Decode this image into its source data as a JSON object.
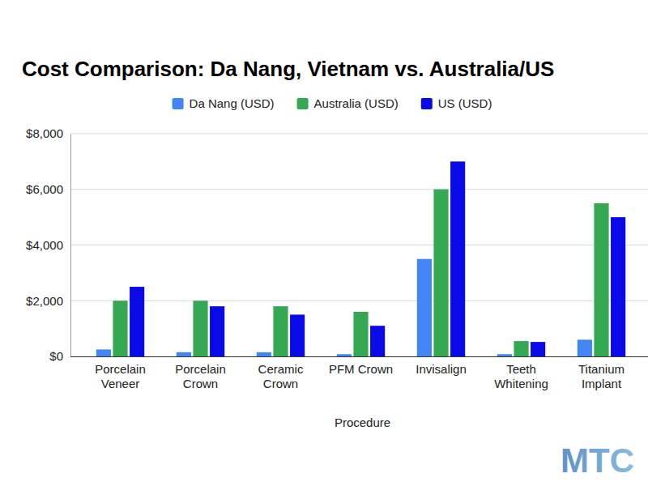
{
  "chart_data": {
    "type": "bar",
    "title": "Cost Comparison: Da Nang, Vietnam vs. Australia/US",
    "x_label": "Procedure",
    "categories": [
      "Porcelain Veneer",
      "Porcelain Crown",
      "Ceramic Crown",
      "PFM Crown",
      "Invisalign",
      "Teeth Whitening",
      "Titanium Implant"
    ],
    "series": [
      {
        "name": "Da Nang (USD)",
        "color": "#4285f4",
        "values": [
          250,
          150,
          150,
          80,
          3500,
          80,
          600
        ]
      },
      {
        "name": "Australia (USD)",
        "color": "#34a853",
        "values": [
          2000,
          2000,
          1800,
          1600,
          6000,
          550,
          5500
        ]
      },
      {
        "name": "US (USD)",
        "color": "#0a0ae8",
        "values": [
          2500,
          1800,
          1500,
          1100,
          7000,
          520,
          5000
        ]
      }
    ],
    "ylim": [
      0,
      8000
    ],
    "yticks": [
      {
        "value": 0,
        "label": "$0"
      },
      {
        "value": 2000,
        "label": "$2,000"
      },
      {
        "value": 4000,
        "label": "$4,000"
      },
      {
        "value": 6000,
        "label": "$6,000"
      },
      {
        "value": 8000,
        "label": "$8,000"
      }
    ],
    "grid": true,
    "legend": "top",
    "annotations": [
      "MTC"
    ]
  }
}
